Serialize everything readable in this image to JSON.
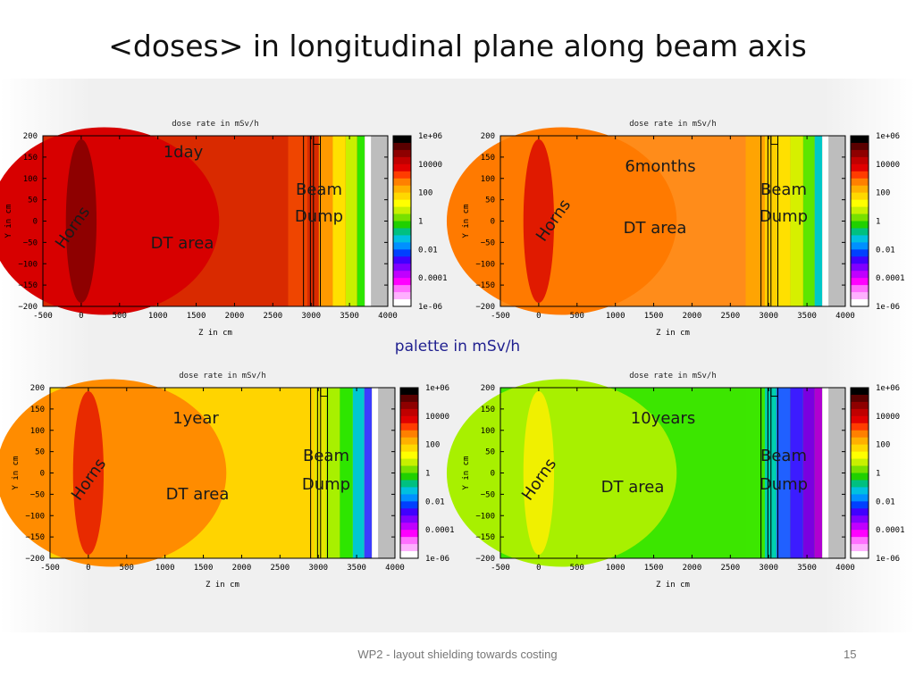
{
  "slide": {
    "title": "<doses> in longitudinal plane along beam axis",
    "palette_label": "palette in mSv/h",
    "footer": "WP2 - layout shielding towards  costing",
    "page_number": "15"
  },
  "chart_data": [
    {
      "type": "heatmap",
      "title": "dose rate in mSv/h",
      "xlabel": "Z in cm",
      "ylabel": "Y in cm",
      "xlim": [
        -500,
        4000
      ],
      "ylim": [
        -200,
        200
      ],
      "xticks": [
        "-500",
        "0",
        "500",
        "1000",
        "1500",
        "2000",
        "2500",
        "3000",
        "3500",
        "4000"
      ],
      "yticks": [
        "200",
        "150",
        "100",
        "50",
        "0",
        "−50",
        "−100",
        "−150",
        "−200"
      ],
      "colorbar_ticks": [
        "1e+06",
        "10000",
        "100",
        "1",
        "0.01",
        "0.0001",
        "1e-06"
      ],
      "time_label": "1day",
      "annotations": {
        "horns": "Horns",
        "dt_area": "DT area",
        "beam": "Beam",
        "dump": "Dump"
      },
      "regions": {
        "horns": "#8e0000",
        "dt_inner": "#d70000",
        "dt_outer": "#d92a00",
        "dump_front": "#f24a00",
        "dump_layers": [
          "#d92a00",
          "#ff9900",
          "#ffe000",
          "#c8f000",
          "#2ee600"
        ]
      }
    },
    {
      "type": "heatmap",
      "title": "dose rate in mSv/h",
      "xlabel": "Z in cm",
      "ylabel": "Y in cm",
      "xlim": [
        -500,
        4000
      ],
      "ylim": [
        -200,
        200
      ],
      "xticks": [
        "-500",
        "0",
        "500",
        "1000",
        "1500",
        "2000",
        "2500",
        "3000",
        "3500",
        "4000"
      ],
      "yticks": [
        "200",
        "150",
        "100",
        "50",
        "0",
        "−50",
        "−100",
        "−150",
        "−200"
      ],
      "colorbar_ticks": [
        "1e+06",
        "10000",
        "100",
        "1",
        "0.01",
        "0.0001",
        "1e-06"
      ],
      "time_label": "6months",
      "annotations": {
        "horns": "Horns",
        "dt_area": "DT area",
        "beam": "Beam",
        "dump": "Dump"
      },
      "regions": {
        "horns": "#e01a00",
        "dt_inner": "#ff7a00",
        "dt_outer": "#ff8c1a",
        "dump_front": "#ffa800",
        "dump_layers": [
          "#ffd000",
          "#ffe000",
          "#d6f000",
          "#5ce600",
          "#00c8c8"
        ]
      }
    },
    {
      "type": "heatmap",
      "title": "dose rate in mSv/h",
      "xlabel": "Z in cm",
      "ylabel": "Y in cm",
      "xlim": [
        -500,
        4000
      ],
      "ylim": [
        -200,
        200
      ],
      "xticks": [
        "-500",
        "0",
        "500",
        "1000",
        "1500",
        "2000",
        "2500",
        "3000",
        "3500",
        "4000"
      ],
      "yticks": [
        "200",
        "150",
        "100",
        "50",
        "0",
        "−50",
        "−100",
        "−150",
        "−200"
      ],
      "colorbar_ticks": [
        "1e+06",
        "10000",
        "100",
        "1",
        "0.01",
        "0.0001",
        "1e-06"
      ],
      "time_label": "1year",
      "annotations": {
        "horns": "Horns",
        "dt_area": "DT area",
        "beam": "Beam",
        "dump": "Dump"
      },
      "regions": {
        "horns": "#e82a00",
        "dt_inner": "#ff8c00",
        "dt_outer": "#ffd400",
        "dump_front": "#ffd400",
        "dump_layers": [
          "#e6e600",
          "#a8f000",
          "#2ee600",
          "#00c8d0",
          "#3c3cff"
        ]
      }
    },
    {
      "type": "heatmap",
      "title": "dose rate in mSv/h",
      "xlabel": "Z in cm",
      "ylabel": "Y in cm",
      "xlim": [
        -500,
        4000
      ],
      "ylim": [
        -200,
        200
      ],
      "xticks": [
        "-500",
        "0",
        "500",
        "1000",
        "1500",
        "2000",
        "2500",
        "3000",
        "3500",
        "4000"
      ],
      "yticks": [
        "200",
        "150",
        "100",
        "50",
        "0",
        "−50",
        "−100",
        "−150",
        "−200"
      ],
      "colorbar_ticks": [
        "1e+06",
        "10000",
        "100",
        "1",
        "0.01",
        "0.0001",
        "1e-06"
      ],
      "time_label": "10years",
      "annotations": {
        "horns": "Horns",
        "dt_area": "DT area",
        "beam": "Beam",
        "dump": "Dump"
      },
      "regions": {
        "horns": "#f0f000",
        "dt_inner": "#a8f000",
        "dt_outer": "#3ce600",
        "dump_front": "#3ce600",
        "dump_layers": [
          "#00d0b0",
          "#2060ff",
          "#3c1cff",
          "#7a00e0",
          "#b000d0"
        ]
      }
    }
  ],
  "colorbar_colors": [
    "#000000",
    "#5a0000",
    "#8e0000",
    "#c00000",
    "#e00000",
    "#ff3c00",
    "#ff8000",
    "#ffb000",
    "#ffd800",
    "#ffff00",
    "#c8f000",
    "#78e000",
    "#20d000",
    "#00c080",
    "#00c0e0",
    "#0090ff",
    "#0040ff",
    "#4000ff",
    "#8000ff",
    "#c000ff",
    "#ff00ff",
    "#ff70ff",
    "#ffb0ff",
    "#ffffff"
  ]
}
